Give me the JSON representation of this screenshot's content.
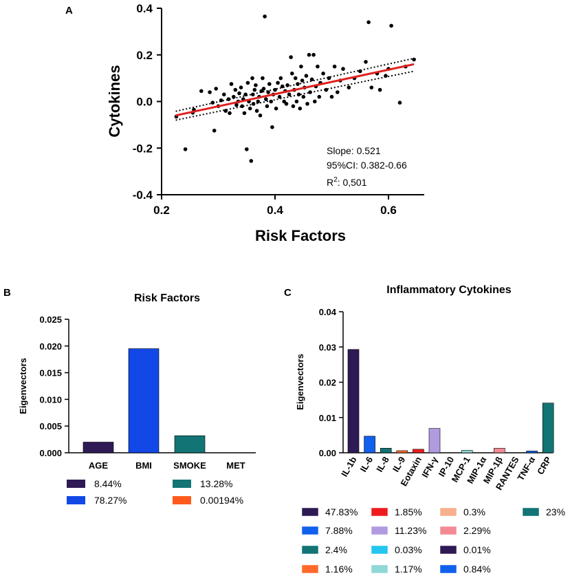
{
  "chart_data": [
    {
      "panel": "A",
      "type": "scatter",
      "title": "",
      "xlabel": "Risk Factors",
      "ylabel": "Cytokines",
      "xlim": [
        0.2,
        0.65
      ],
      "ylim": [
        -0.4,
        0.4
      ],
      "xticks": [
        "0.2",
        "0.4",
        "0.6"
      ],
      "yticks": [
        "0.4",
        "0.2",
        "0.0",
        "-0.2",
        "-0.4"
      ],
      "regression": {
        "x": [
          0.225,
          0.645
        ],
        "y": [
          -0.06,
          0.16
        ],
        "color": "#e02020"
      },
      "ci_upper": {
        "x": [
          0.225,
          0.645
        ],
        "y": [
          -0.042,
          0.185
        ]
      },
      "ci_lower": {
        "x": [
          0.225,
          0.645
        ],
        "y": [
          -0.08,
          0.13
        ]
      },
      "annotations": {
        "slope": "Slope: 0.521",
        "ci": "95%CI: 0.382-0.66",
        "r2_prefix": "R",
        "r2_sup": "2",
        "r2_value": ": 0,501"
      },
      "points": [
        [
          0.226,
          -0.065
        ],
        [
          0.242,
          -0.205
        ],
        [
          0.255,
          -0.048
        ],
        [
          0.257,
          -0.035
        ],
        [
          0.27,
          0.045
        ],
        [
          0.285,
          0.04
        ],
        [
          0.29,
          -0.005
        ],
        [
          0.293,
          -0.125
        ],
        [
          0.296,
          0.055
        ],
        [
          0.3,
          -0.02
        ],
        [
          0.305,
          0.005
        ],
        [
          0.31,
          0.03
        ],
        [
          0.313,
          -0.04
        ],
        [
          0.318,
          0.01
        ],
        [
          0.32,
          -0.05
        ],
        [
          0.323,
          0.075
        ],
        [
          0.327,
          0.02
        ],
        [
          0.33,
          0.05
        ],
        [
          0.332,
          -0.015
        ],
        [
          0.335,
          0.0
        ],
        [
          0.337,
          0.035
        ],
        [
          0.34,
          0.06
        ],
        [
          0.342,
          -0.02
        ],
        [
          0.344,
          0.01
        ],
        [
          0.346,
          -0.05
        ],
        [
          0.348,
          0.03
        ],
        [
          0.35,
          -0.205
        ],
        [
          0.352,
          0.08
        ],
        [
          0.354,
          0.0
        ],
        [
          0.356,
          -0.03
        ],
        [
          0.358,
          -0.255
        ],
        [
          0.36,
          0.1
        ],
        [
          0.361,
          0.03
        ],
        [
          0.362,
          -0.01
        ],
        [
          0.364,
          0.05
        ],
        [
          0.366,
          0.07
        ],
        [
          0.368,
          -0.04
        ],
        [
          0.37,
          0.0
        ],
        [
          0.372,
          0.02
        ],
        [
          0.374,
          -0.06
        ],
        [
          0.376,
          0.045
        ],
        [
          0.378,
          0.1
        ],
        [
          0.38,
          0.055
        ],
        [
          0.382,
          0.365
        ],
        [
          0.384,
          0.01
        ],
        [
          0.386,
          -0.02
        ],
        [
          0.388,
          0.04
        ],
        [
          0.39,
          0.075
        ],
        [
          0.393,
          0.0
        ],
        [
          0.395,
          -0.11
        ],
        [
          0.397,
          0.03
        ],
        [
          0.4,
          0.05
        ],
        [
          0.402,
          -0.03
        ],
        [
          0.405,
          0.08
        ],
        [
          0.408,
          0.02
        ],
        [
          0.41,
          0.1
        ],
        [
          0.413,
          0.065
        ],
        [
          0.416,
          0.0
        ],
        [
          0.418,
          0.045
        ],
        [
          0.42,
          -0.01
        ],
        [
          0.422,
          0.07
        ],
        [
          0.425,
          0.03
        ],
        [
          0.428,
          0.19
        ],
        [
          0.43,
          0.12
        ],
        [
          0.432,
          -0.02
        ],
        [
          0.434,
          0.05
        ],
        [
          0.436,
          0.1
        ],
        [
          0.438,
          0.0
        ],
        [
          0.44,
          0.075
        ],
        [
          0.442,
          0.03
        ],
        [
          0.444,
          -0.03
        ],
        [
          0.446,
          0.15
        ],
        [
          0.448,
          0.09
        ],
        [
          0.45,
          0.02
        ],
        [
          0.452,
          0.06
        ],
        [
          0.455,
          0.11
        ],
        [
          0.457,
          -0.01
        ],
        [
          0.46,
          0.2
        ],
        [
          0.462,
          0.04
        ],
        [
          0.465,
          0.095
        ],
        [
          0.468,
          0.2
        ],
        [
          0.47,
          0.0
        ],
        [
          0.472,
          0.065
        ],
        [
          0.475,
          0.15
        ],
        [
          0.478,
          0.02
        ],
        [
          0.48,
          0.08
        ],
        [
          0.485,
          0.12
        ],
        [
          0.49,
          0.05
        ],
        [
          0.495,
          0.1
        ],
        [
          0.5,
          0.02
        ],
        [
          0.505,
          0.15
        ],
        [
          0.51,
          0.04
        ],
        [
          0.515,
          0.09
        ],
        [
          0.52,
          0.14
        ],
        [
          0.53,
          0.06
        ],
        [
          0.54,
          0.1
        ],
        [
          0.55,
          0.13
        ],
        [
          0.56,
          0.17
        ],
        [
          0.565,
          0.34
        ],
        [
          0.57,
          0.06
        ],
        [
          0.58,
          0.12
        ],
        [
          0.585,
          0.05
        ],
        [
          0.595,
          0.11
        ],
        [
          0.6,
          0.14
        ],
        [
          0.605,
          0.325
        ],
        [
          0.62,
          -0.005
        ],
        [
          0.63,
          0.15
        ],
        [
          0.645,
          0.18
        ]
      ]
    },
    {
      "panel": "B",
      "type": "bar",
      "title": "Risk  Factors",
      "xlabel": "",
      "ylabel": "Eigenvectors",
      "ylim": [
        0,
        0.025
      ],
      "yticks": [
        "0.025",
        "0.020",
        "0.015",
        "0.010",
        "0.005",
        "0.000"
      ],
      "categories": [
        "AGE",
        "BMI",
        "SMOKE",
        "MET"
      ],
      "values": [
        0.002,
        0.0195,
        0.0032,
        0.0
      ],
      "colors": [
        "#2e1a55",
        "#1148e6",
        "#127474",
        "#ff5a1c"
      ]
    },
    {
      "panel": "C",
      "type": "bar",
      "title": "Inflammatory Cytokines",
      "xlabel": "",
      "ylabel": "Eigenvectors",
      "ylim": [
        0,
        0.04
      ],
      "yticks": [
        "0.04",
        "0.03",
        "0.02",
        "0.01",
        "0.00"
      ],
      "categories": [
        "IL-1b",
        "IL-6",
        "IL-8",
        "IL-9",
        "Eotaxin",
        "IFN-γ",
        "IP-10",
        "MCP-1",
        "MIP-1α",
        "MIP-1β",
        "RANTES",
        "TNF-α",
        "CRP"
      ],
      "values": [
        0.0293,
        0.0047,
        0.0013,
        0.0006,
        0.001,
        0.0069,
        0.0,
        0.0007,
        0.0,
        0.0013,
        0.0,
        0.0005,
        0.0141
      ],
      "colors": [
        "#2e1a55",
        "#1160ee",
        "#127474",
        "#ff6a2a",
        "#ee1c1c",
        "#b09be0",
        "#22c6ee",
        "#8fd8d8",
        "#2e1a55",
        "#f48a94",
        "#f7b08c",
        "#1160ee",
        "#127474"
      ]
    }
  ],
  "labels": {
    "panel_a": "A",
    "panel_b": "B",
    "panel_c": "C"
  },
  "legend_b": [
    {
      "text": "8.44%",
      "color": "#2e1a55"
    },
    {
      "text": "13.28%",
      "color": "#127474"
    },
    {
      "text": "78.27%",
      "color": "#1148e6"
    },
    {
      "text": "0.00194%",
      "color": "#ff5a1c"
    }
  ],
  "legend_c": [
    {
      "text": "47.83%",
      "color": "#2e1a55"
    },
    {
      "text": "1.85%",
      "color": "#ee1c1c"
    },
    {
      "text": "0.3%",
      "color": "#f7b08c"
    },
    {
      "text": "23%",
      "color": "#127474"
    },
    {
      "text": "7.88%",
      "color": "#1160ee"
    },
    {
      "text": "11.23%",
      "color": "#b09be0"
    },
    {
      "text": "2.29%",
      "color": "#f48a94"
    },
    {
      "text": "2.4%",
      "color": "#127474"
    },
    {
      "text": "0.03%",
      "color": "#22c6ee"
    },
    {
      "text": "0.01%",
      "color": "#2e1a55"
    },
    {
      "text": "1.16%",
      "color": "#ff6a2a"
    },
    {
      "text": "1.17%",
      "color": "#8fd8d8"
    },
    {
      "text": "0.84%",
      "color": "#1160ee"
    }
  ]
}
